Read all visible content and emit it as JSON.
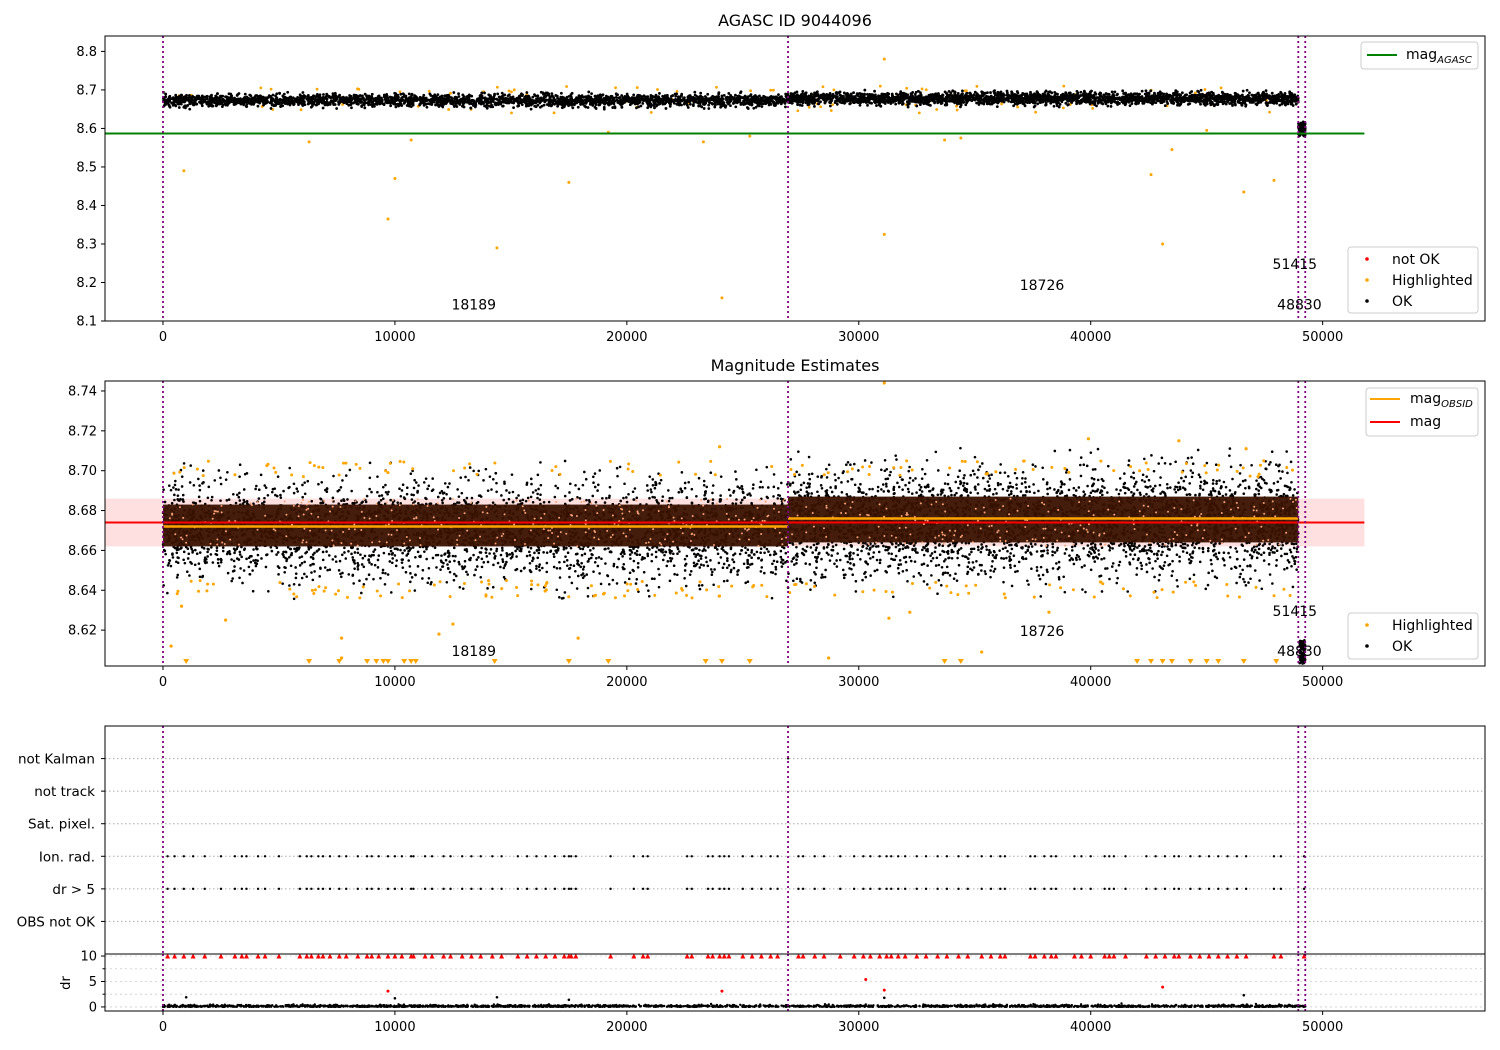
{
  "chart_data": [
    {
      "type": "scatter",
      "title": "AGASC ID 9044096",
      "xlim": [
        -2500,
        57000
      ],
      "ylim": [
        8.1,
        8.84
      ],
      "x_ticks": [
        0,
        10000,
        20000,
        30000,
        40000,
        50000
      ],
      "y_ticks": [
        8.1,
        8.2,
        8.3,
        8.4,
        8.5,
        8.6,
        8.7,
        8.8
      ],
      "x_tick_labels": [
        "0",
        "10000",
        "20000",
        "30000",
        "40000",
        "50000"
      ],
      "y_tick_labels": [
        "8.1",
        "8.2",
        "8.3",
        "8.4",
        "8.5",
        "8.6",
        "8.7",
        "8.8"
      ],
      "obsid_boundaries": [
        0,
        26950,
        48950,
        49250
      ],
      "ok_bands": [
        {
          "x": [
            0,
            26950
          ],
          "y_low": 8.655,
          "y_high": 8.69
        },
        {
          "x": [
            26950,
            48950
          ],
          "y_low": 8.66,
          "y_high": 8.695
        },
        {
          "x": [
            48950,
            49250
          ],
          "y_low": 8.58,
          "y_high": 8.615
        }
      ],
      "lines": [
        {
          "name": "mag_AGASC",
          "x": [
            -2500,
            51800
          ],
          "y": [
            8.587,
            8.587
          ],
          "color": "#008000"
        }
      ],
      "highlighted_outliers": [
        {
          "x": 900,
          "y": 8.49
        },
        {
          "x": 9700,
          "y": 8.365
        },
        {
          "x": 10000,
          "y": 8.47
        },
        {
          "x": 14400,
          "y": 8.29
        },
        {
          "x": 17500,
          "y": 8.46
        },
        {
          "x": 24100,
          "y": 8.16
        },
        {
          "x": 31100,
          "y": 8.78
        },
        {
          "x": 31100,
          "y": 8.325
        },
        {
          "x": 42600,
          "y": 8.48
        },
        {
          "x": 43100,
          "y": 8.3
        },
        {
          "x": 43500,
          "y": 8.545
        },
        {
          "x": 46600,
          "y": 8.435
        },
        {
          "x": 47900,
          "y": 8.465
        },
        {
          "x": 23300,
          "y": 8.565
        },
        {
          "x": 6300,
          "y": 8.565
        },
        {
          "x": 10700,
          "y": 8.57
        },
        {
          "x": 33700,
          "y": 8.57
        },
        {
          "x": 34400,
          "y": 8.575
        },
        {
          "x": 25300,
          "y": 8.58
        },
        {
          "x": 45000,
          "y": 8.595
        },
        {
          "x": 19200,
          "y": 8.59
        }
      ],
      "annotations": [
        {
          "text": "18189",
          "x": 13400,
          "y": 8.13
        },
        {
          "text": "18726",
          "x": 37900,
          "y": 8.18
        },
        {
          "text": "51415",
          "x": 48800,
          "y": 8.235
        },
        {
          "text": "48830",
          "x": 49000,
          "y": 8.13
        }
      ],
      "legends": [
        {
          "position": "top-right",
          "entries": [
            {
              "label": "mag",
              "sub": "AGASC",
              "color": "#008000",
              "kind": "line"
            }
          ]
        },
        {
          "position": "bottom-right",
          "entries": [
            {
              "label": "not OK",
              "color": "#ff0000",
              "kind": "dot"
            },
            {
              "label": "Highlighted",
              "color": "#ffa500",
              "kind": "dot"
            },
            {
              "label": "OK",
              "color": "#000000",
              "kind": "dot"
            }
          ]
        }
      ]
    },
    {
      "type": "scatter",
      "title": "Magnitude Estimates",
      "xlim": [
        -2500,
        57000
      ],
      "ylim": [
        8.602,
        8.745
      ],
      "x_ticks": [
        0,
        10000,
        20000,
        30000,
        40000,
        50000
      ],
      "y_ticks": [
        8.62,
        8.64,
        8.66,
        8.68,
        8.7,
        8.72,
        8.74
      ],
      "x_tick_labels": [
        "0",
        "10000",
        "20000",
        "30000",
        "40000",
        "50000"
      ],
      "y_tick_labels": [
        "8.62",
        "8.64",
        "8.66",
        "8.68",
        "8.70",
        "8.72",
        "8.74"
      ],
      "obsid_boundaries": [
        0,
        26950,
        48950,
        49250
      ],
      "mag_band": {
        "x": [
          -2500,
          51800
        ],
        "y_low": 8.662,
        "y_high": 8.686
      },
      "obsid_bands": [
        {
          "x": [
            0,
            26950
          ],
          "y_low": 8.662,
          "y_high": 8.683
        },
        {
          "x": [
            26950,
            48950
          ],
          "y_low": 8.664,
          "y_high": 8.687
        }
      ],
      "ok_spread": [
        {
          "x": [
            0,
            26950
          ],
          "y_low": 8.643,
          "y_high": 8.697
        },
        {
          "x": [
            26950,
            48950
          ],
          "y_low": 8.645,
          "y_high": 8.703
        }
      ],
      "lines": [
        {
          "name": "mag_OBSID",
          "segments": [
            {
              "x": [
                0,
                26950
              ],
              "y": 8.672
            },
            {
              "x": [
                26950,
                48950
              ],
              "y": 8.676
            }
          ],
          "color": "#ffa500"
        },
        {
          "name": "mag",
          "x": [
            -2500,
            51800
          ],
          "y": [
            8.674,
            8.674
          ],
          "color": "#ff0000"
        }
      ],
      "highlighted_outliers": [
        {
          "x": 31100,
          "y": 8.744
        },
        {
          "x": 39900,
          "y": 8.716
        },
        {
          "x": 43800,
          "y": 8.715
        },
        {
          "x": 24000,
          "y": 8.712
        },
        {
          "x": 46700,
          "y": 8.711
        },
        {
          "x": 350,
          "y": 8.612
        },
        {
          "x": 2700,
          "y": 8.625
        },
        {
          "x": 7700,
          "y": 8.616
        },
        {
          "x": 7700,
          "y": 8.606
        },
        {
          "x": 11900,
          "y": 8.618
        },
        {
          "x": 12500,
          "y": 8.623
        },
        {
          "x": 17900,
          "y": 8.616
        },
        {
          "x": 31300,
          "y": 8.626
        },
        {
          "x": 32200,
          "y": 8.629
        },
        {
          "x": 38200,
          "y": 8.629
        },
        {
          "x": 35300,
          "y": 8.609
        },
        {
          "x": 28700,
          "y": 8.606
        },
        {
          "x": 800,
          "y": 8.632
        }
      ],
      "clipped_markers_x": [
        1000,
        6300,
        7600,
        8800,
        9200,
        9500,
        9700,
        10400,
        10700,
        10900,
        14300,
        17500,
        19200,
        23400,
        24100,
        25300,
        33700,
        34400,
        42000,
        42600,
        43100,
        43500,
        44300,
        45000,
        45500,
        46600,
        48000
      ],
      "annotations": [
        {
          "text": "18189",
          "x": 13400,
          "y": 8.607
        },
        {
          "text": "18726",
          "x": 37900,
          "y": 8.617
        },
        {
          "text": "51415",
          "x": 48800,
          "y": 8.627
        },
        {
          "text": "48830",
          "x": 49000,
          "y": 8.607
        }
      ],
      "legends": [
        {
          "position": "top-right",
          "entries": [
            {
              "label": "mag",
              "sub": "OBSID",
              "color": "#ffa500",
              "kind": "line"
            },
            {
              "label": "mag",
              "sub": "",
              "color": "#ff0000",
              "kind": "line"
            }
          ]
        },
        {
          "position": "bottom-right",
          "entries": [
            {
              "label": "Highlighted",
              "color": "#ffa500",
              "kind": "dot"
            },
            {
              "label": "OK",
              "color": "#000000",
              "kind": "dot"
            }
          ]
        }
      ]
    },
    {
      "type": "scatter",
      "xlim": [
        -2500,
        57000
      ],
      "categories": [
        "OBS not OK",
        "dr > 5",
        "Ion. rad.",
        "Sat. pixel.",
        "not track",
        "not Kalman"
      ],
      "flag_events_x": [
        200,
        500,
        900,
        1300,
        1800,
        2500,
        3100,
        3400,
        3600,
        4100,
        4400,
        5000,
        5900,
        6200,
        6400,
        6700,
        6900,
        7200,
        7600,
        7900,
        8400,
        8800,
        9000,
        9300,
        9700,
        10000,
        10300,
        10700,
        10800,
        11300,
        11600,
        12100,
        12400,
        12900,
        13300,
        13700,
        14200,
        14600,
        15300,
        15700,
        16100,
        16500,
        16900,
        17300,
        17500,
        17600,
        17800,
        19300,
        20300,
        20700,
        20900,
        22600,
        22800,
        23500,
        23700,
        24000,
        24200,
        24400,
        25000,
        25400,
        25800,
        26200,
        26500,
        27400,
        27600,
        28100,
        28500,
        29200,
        29800,
        30200,
        30500,
        30900,
        31200,
        31400,
        31700,
        32000,
        32500,
        32900,
        33400,
        33800,
        34300,
        34700,
        35300,
        35700,
        36100,
        36300,
        37400,
        37600,
        38000,
        38300,
        38500,
        39300,
        39600,
        40000,
        40600,
        40800,
        41000,
        41500,
        42400,
        42800,
        43200,
        43600,
        43800,
        44300,
        44700,
        45100,
        45500,
        45900,
        46300,
        46700,
        47900,
        48200,
        49200
      ],
      "legends": []
    },
    {
      "type": "scatter",
      "xlim": [
        -2500,
        57000
      ],
      "ylim": [
        -0.8,
        10.4
      ],
      "ylabel": "dr",
      "y_ticks": [
        0,
        5,
        10
      ],
      "y_tick_labels": [
        "0",
        "5",
        "10"
      ],
      "x_ticks": [
        0,
        10000,
        20000,
        30000,
        40000,
        50000
      ],
      "x_tick_labels": [
        "0",
        "10000",
        "20000",
        "30000",
        "40000",
        "50000"
      ],
      "clipped_points": {
        "y": 10,
        "marker": "triangle-up",
        "color": "#ff0000"
      },
      "not_ok_points": [
        {
          "x": 9700,
          "y": 3.1
        },
        {
          "x": 24100,
          "y": 3.1
        },
        {
          "x": 30300,
          "y": 5.4
        },
        {
          "x": 31100,
          "y": 3.3
        },
        {
          "x": 43100,
          "y": 3.9
        }
      ],
      "ok_outliers": [
        {
          "x": 1000,
          "y": 1.9
        },
        {
          "x": 10000,
          "y": 1.7
        },
        {
          "x": 14400,
          "y": 1.9
        },
        {
          "x": 17500,
          "y": 1.4
        },
        {
          "x": 31100,
          "y": 1.8
        },
        {
          "x": 46600,
          "y": 2.3
        }
      ],
      "legends": []
    }
  ]
}
